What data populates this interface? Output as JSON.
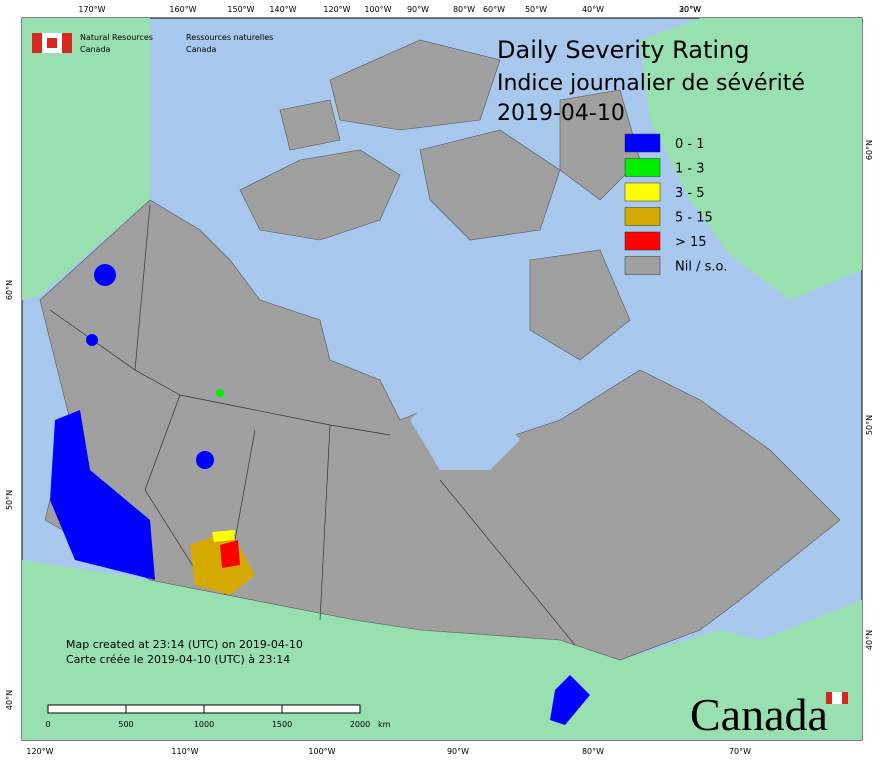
{
  "header": {
    "agency_en": [
      "Natural Resources",
      "Canada"
    ],
    "agency_fr": [
      "Ressources naturelles",
      "Canada"
    ]
  },
  "title": [
    "Daily Severity Rating",
    "Indice journalier de sévérité",
    "2019-04-10"
  ],
  "legend": [
    {
      "label": "0 - 1",
      "color": "#0000ff"
    },
    {
      "label": "1 - 3",
      "color": "#00ee00"
    },
    {
      "label": "3 - 5",
      "color": "#ffff00"
    },
    {
      "label": "5 - 15",
      "color": "#d4aa00"
    },
    {
      "label": "> 15",
      "color": "#ff0000"
    },
    {
      "label": "Nil / s.o.",
      "color": "#a0a0a0"
    }
  ],
  "graticule": {
    "top": [
      "170°W",
      "160°W",
      "150°W",
      "140°W",
      "120°W",
      "100°W",
      "90°W",
      "80°W",
      "60°W",
      "50°W",
      "40°W",
      "30°W",
      "20°W"
    ],
    "bottom": [
      "120°W",
      "110°W",
      "100°W",
      "90°W",
      "80°W",
      "70°W"
    ],
    "left": [
      "60°N",
      "50°N",
      "40°N"
    ],
    "right": [
      "60°N",
      "50°N",
      "40°N"
    ]
  },
  "notes": [
    "Map created at 23:14 (UTC) on 2019-04-10",
    "Carte créée le 2019-04-10 (UTC) à 23:14"
  ],
  "scale_bar": {
    "labels": [
      "0",
      "500",
      "1000",
      "1500",
      "2000"
    ],
    "unit": "km"
  },
  "wordmark": "Canada"
}
